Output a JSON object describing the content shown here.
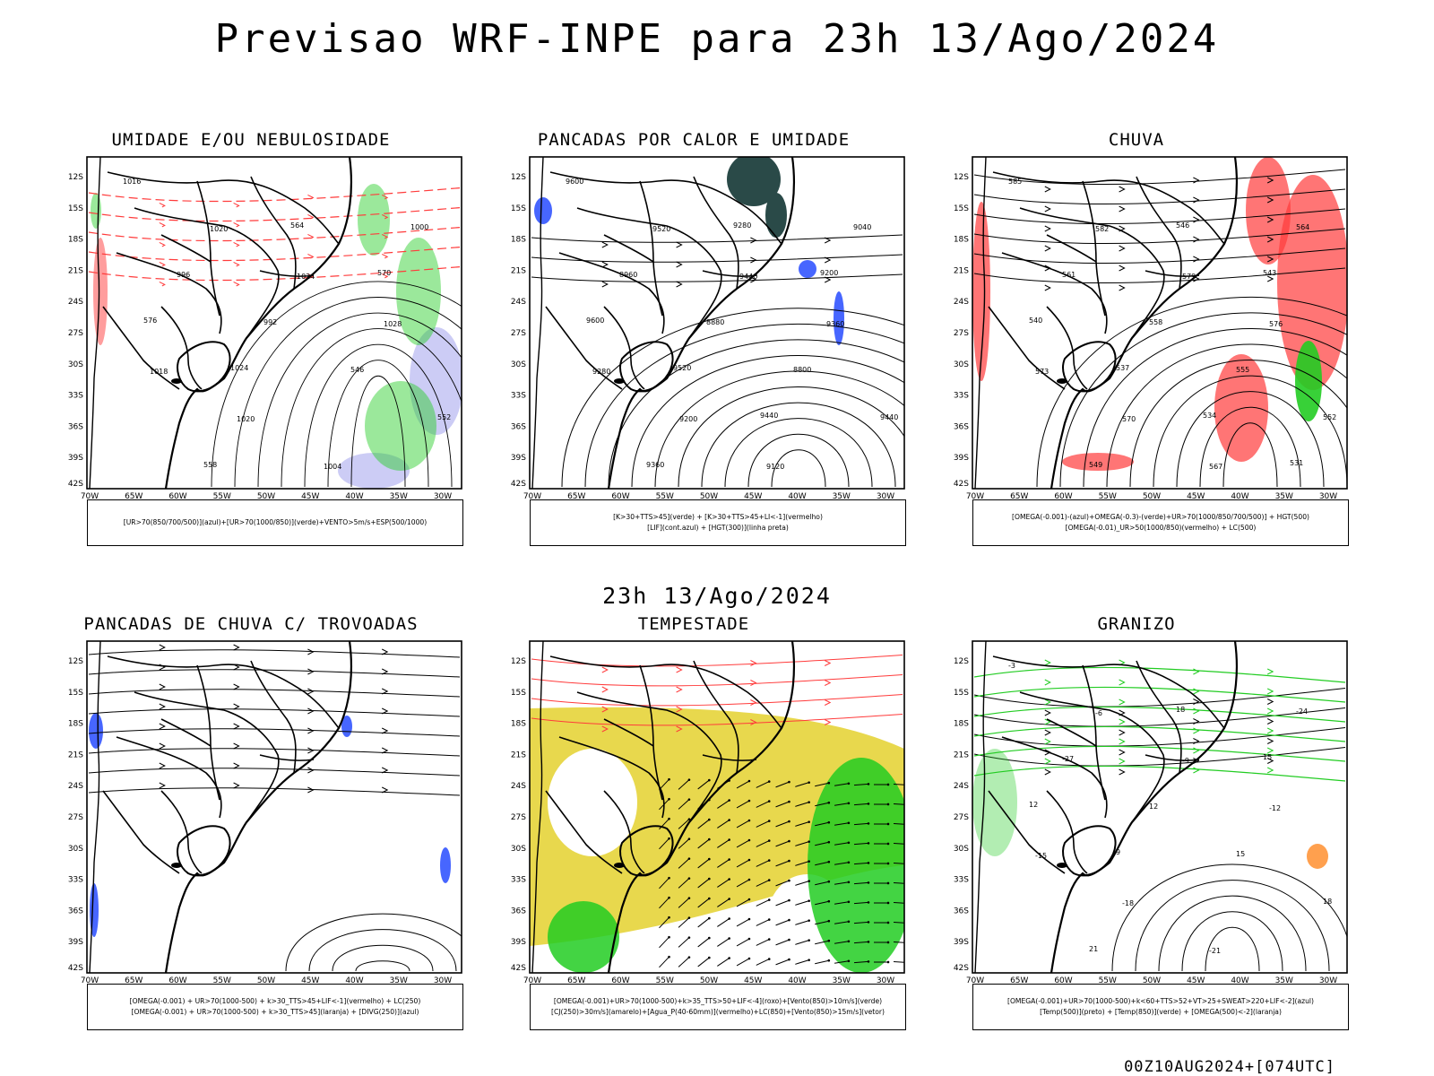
{
  "header": {
    "title": "Previsao WRF-INPE  para 23h 13/Ago/2024"
  },
  "middle_header": {
    "title": "23h 13/Ago/2024"
  },
  "footer": {
    "text": "00Z10AUG2024+[074UTC]"
  },
  "axes": {
    "lat_labels": [
      "12S",
      "15S",
      "18S",
      "21S",
      "24S",
      "27S",
      "30S",
      "33S",
      "36S",
      "39S",
      "42S"
    ],
    "lon_labels": [
      "70W",
      "65W",
      "60W",
      "55W",
      "50W",
      "45W",
      "40W",
      "35W",
      "30W"
    ]
  },
  "panels": [
    {
      "title": "UMIDADE E/OU NEBULOSIDADE",
      "legend": [
        "[UR>70(850/700/500)](azul)+[UR>70(1000/850)](verde)+VENTO>5m/s+ESP(500/1000)"
      ],
      "labels": [
        "1016",
        "1020",
        "1024",
        "1028",
        "1018",
        "1020",
        "1004",
        "1000",
        "996",
        "992",
        "546",
        "552",
        "558",
        "564",
        "570",
        "576",
        "1024"
      ]
    },
    {
      "title": "PANCADAS POR CALOR E UMIDADE",
      "legend": [
        "[K>30+TTS>45](verde) + [K>30+TTS>45+LI<-1](vermelho)",
        "[LIF](cont.azul) + [HGT(300)](linha preta)"
      ],
      "labels": [
        "9600",
        "9520",
        "9440",
        "9360",
        "9280",
        "9200",
        "9120",
        "9040",
        "8960",
        "8880",
        "8800",
        "9440",
        "9360",
        "9280",
        "9200",
        "9600",
        "9520",
        "9440"
      ]
    },
    {
      "title": "CHUVA",
      "legend": [
        "[OMEGA(-0.001)-(azul)+OMEGA(-0.3)-(verde)+UR>70(1000/850/700/500)] + HGT(500)",
        "[OMEGA(-0.01)_UR>50(1000/850)(vermelho) + LC(500)"
      ],
      "labels": [
        "585",
        "582",
        "579",
        "576",
        "573",
        "570",
        "567",
        "564",
        "561",
        "558",
        "555",
        "552",
        "549",
        "546",
        "543",
        "540",
        "537",
        "534",
        "531"
      ]
    },
    {
      "title": "PANCADAS DE CHUVA C/ TROVOADAS",
      "legend": [
        "[OMEGA(-0.001) + UR>70(1000-500) + k>30_TTS>45+LIF<-1](vermelho) + LC(250)",
        "[OMEGA(-0.001) + UR>70(1000-500) + k>30_TTS>45](laranja) + [DIVG(250)](azul)"
      ],
      "labels": []
    },
    {
      "title": "TEMPESTADE",
      "legend": [
        "[OMEGA(-0.001)+UR>70(1000-500)+k>35_TTS>50+LIF<-4](roxo)+[Vento(850)>10m/s](verde)",
        "[CJ(250)>30m/s](amarelo)+[Agua_P(40-60mm)](vermelho)+LC(850)+[Vento(850)>15m/s](vetor)"
      ],
      "labels": []
    },
    {
      "title": "GRANIZO",
      "legend": [
        "[OMEGA(-0.001)+UR>70(1000-500)+k<60+TTS>52+VT>25+SWEAT>220+LIF<-2](azul)",
        "[Temp(500)](preto) + [Temp(850)](verde) + [OMEGA(500)<-2](laranja)"
      ],
      "labels": [
        "-3",
        "-6",
        "-9",
        "-12",
        "-15",
        "-18",
        "-21",
        "-24",
        "-27",
        "12",
        "15",
        "18",
        "21",
        "18",
        "15",
        "12",
        "9"
      ]
    }
  ],
  "colors": {
    "red": "#ff3b3b",
    "green": "#22cc22",
    "blue": "#3355ff",
    "lavender": "#aaaaee",
    "yellow": "#e5d43a",
    "dark_green": "#2a4a48",
    "orange": "#ff8822",
    "black": "#000000"
  }
}
